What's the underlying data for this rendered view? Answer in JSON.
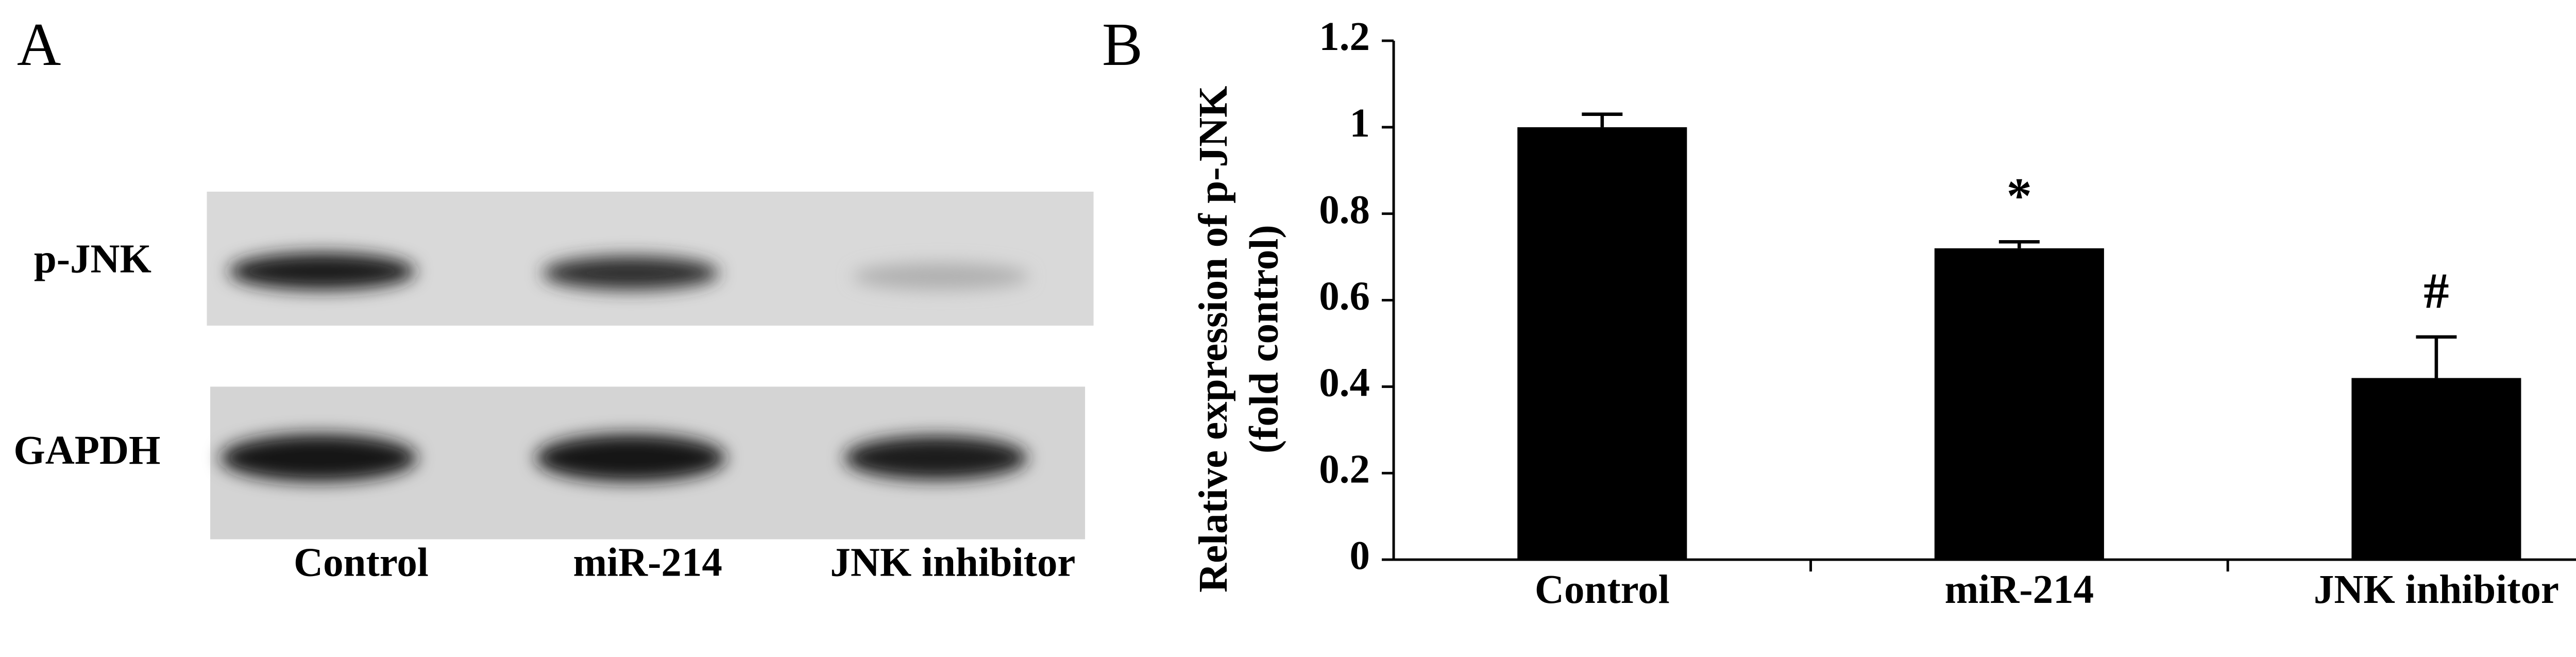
{
  "blot": {
    "panel_label": "A",
    "rows": [
      "p-JNK",
      "GAPDH"
    ],
    "lanes": [
      "Control",
      "miR-214",
      "JNK inhibitor"
    ]
  },
  "chart_data": {
    "type": "bar",
    "panel_label": "B",
    "y_label": [
      "Relative expression of p-JNK",
      "(fold control)"
    ],
    "categories": [
      "Control",
      "miR-214",
      "JNK inhibitor"
    ],
    "values": [
      1.0,
      0.72,
      0.42
    ],
    "errors": [
      0.03,
      0.015,
      0.095
    ],
    "color": "#000000",
    "annotations": [
      {
        "text": "*",
        "x": "miR-214"
      },
      {
        "text": "#",
        "x": "JNK inhibitor"
      }
    ],
    "ylim": [
      0,
      1.2
    ],
    "yticks": [
      1.2,
      1,
      0.8,
      0.6,
      0.4,
      0.2,
      0
    ],
    "grid": false
  }
}
